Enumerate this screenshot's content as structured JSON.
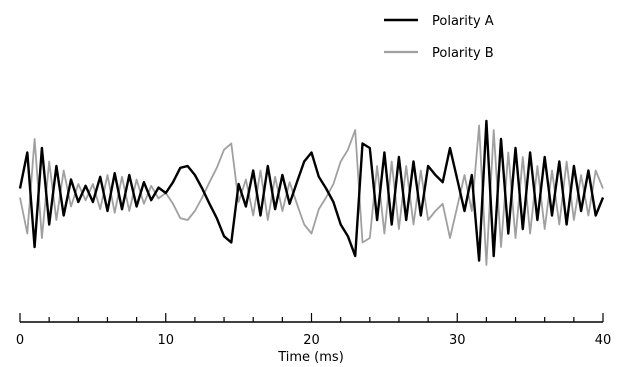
{
  "chart_data": {
    "type": "line",
    "title": "",
    "xlabel": "Time (ms)",
    "ylabel": "",
    "xlim": [
      0,
      40
    ],
    "ylim": [
      -1,
      1
    ],
    "x_ticks": [
      0,
      10,
      20,
      30,
      40
    ],
    "x_minor_step": 2,
    "grid": false,
    "y_axis_shown": false,
    "legend_position": "top-right",
    "colors": {
      "Polarity A": "#000000",
      "Polarity B": "#a0a0a0"
    },
    "x": [
      0,
      0.5,
      1,
      1.5,
      2,
      2.5,
      3,
      3.5,
      4,
      4.5,
      5,
      5.5,
      6,
      6.5,
      7,
      7.5,
      8,
      8.5,
      9,
      9.5,
      10,
      10.5,
      11,
      11.5,
      12,
      12.5,
      13,
      13.5,
      14,
      14.5,
      15,
      15.5,
      16,
      16.5,
      17,
      17.5,
      18,
      18.5,
      19,
      19.5,
      20,
      20.5,
      21,
      21.5,
      22,
      22.5,
      23,
      23.5,
      24,
      24.5,
      25,
      25.5,
      26,
      26.5,
      27,
      27.5,
      28,
      28.5,
      29,
      29.5,
      30,
      30.5,
      31,
      31.5,
      32,
      32.5,
      33,
      33.5,
      34,
      34.5,
      35,
      35.5,
      36,
      36.5,
      37,
      37.5,
      38,
      38.5,
      39,
      39.5,
      40
    ],
    "series": [
      {
        "name": "Polarity A",
        "values": [
          0.05,
          0.45,
          -0.6,
          0.5,
          -0.35,
          0.3,
          -0.25,
          0.15,
          -0.1,
          0.08,
          -0.1,
          0.18,
          -0.2,
          0.22,
          -0.18,
          0.2,
          -0.15,
          0.12,
          -0.08,
          0.06,
          0.0,
          0.12,
          0.28,
          0.3,
          0.2,
          0.05,
          -0.12,
          -0.28,
          -0.48,
          -0.55,
          0.1,
          -0.15,
          0.25,
          -0.25,
          0.3,
          -0.18,
          0.2,
          -0.12,
          0.12,
          0.35,
          0.45,
          0.18,
          0.05,
          -0.1,
          -0.35,
          -0.48,
          -0.7,
          0.55,
          0.5,
          -0.3,
          0.45,
          -0.35,
          0.4,
          -0.3,
          0.35,
          -0.25,
          0.3,
          0.2,
          0.12,
          0.5,
          0.15,
          -0.2,
          0.2,
          -0.75,
          0.8,
          -0.7,
          0.6,
          -0.45,
          0.5,
          -0.4,
          0.45,
          -0.3,
          0.4,
          -0.25,
          0.35,
          -0.35,
          0.3,
          -0.2,
          0.25,
          -0.25,
          -0.05
        ]
      },
      {
        "name": "Polarity B",
        "values": [
          -0.05,
          -0.45,
          0.6,
          -0.5,
          0.35,
          -0.3,
          0.25,
          -0.15,
          0.1,
          -0.08,
          0.1,
          -0.18,
          0.2,
          -0.22,
          0.18,
          -0.2,
          0.15,
          -0.12,
          0.08,
          -0.06,
          0.0,
          -0.12,
          -0.28,
          -0.3,
          -0.2,
          -0.05,
          0.12,
          0.28,
          0.48,
          0.55,
          -0.1,
          0.15,
          -0.25,
          0.25,
          -0.3,
          0.18,
          -0.2,
          0.12,
          -0.12,
          -0.35,
          -0.45,
          -0.18,
          -0.05,
          0.1,
          0.35,
          0.48,
          0.7,
          -0.55,
          -0.5,
          0.3,
          -0.45,
          0.35,
          -0.4,
          0.3,
          -0.35,
          0.25,
          -0.3,
          -0.2,
          -0.12,
          -0.5,
          -0.15,
          0.2,
          -0.2,
          0.75,
          -0.8,
          0.7,
          -0.6,
          0.45,
          -0.5,
          0.4,
          -0.45,
          0.3,
          -0.4,
          0.25,
          -0.35,
          0.35,
          -0.3,
          0.2,
          -0.25,
          0.25,
          0.05
        ]
      }
    ]
  }
}
